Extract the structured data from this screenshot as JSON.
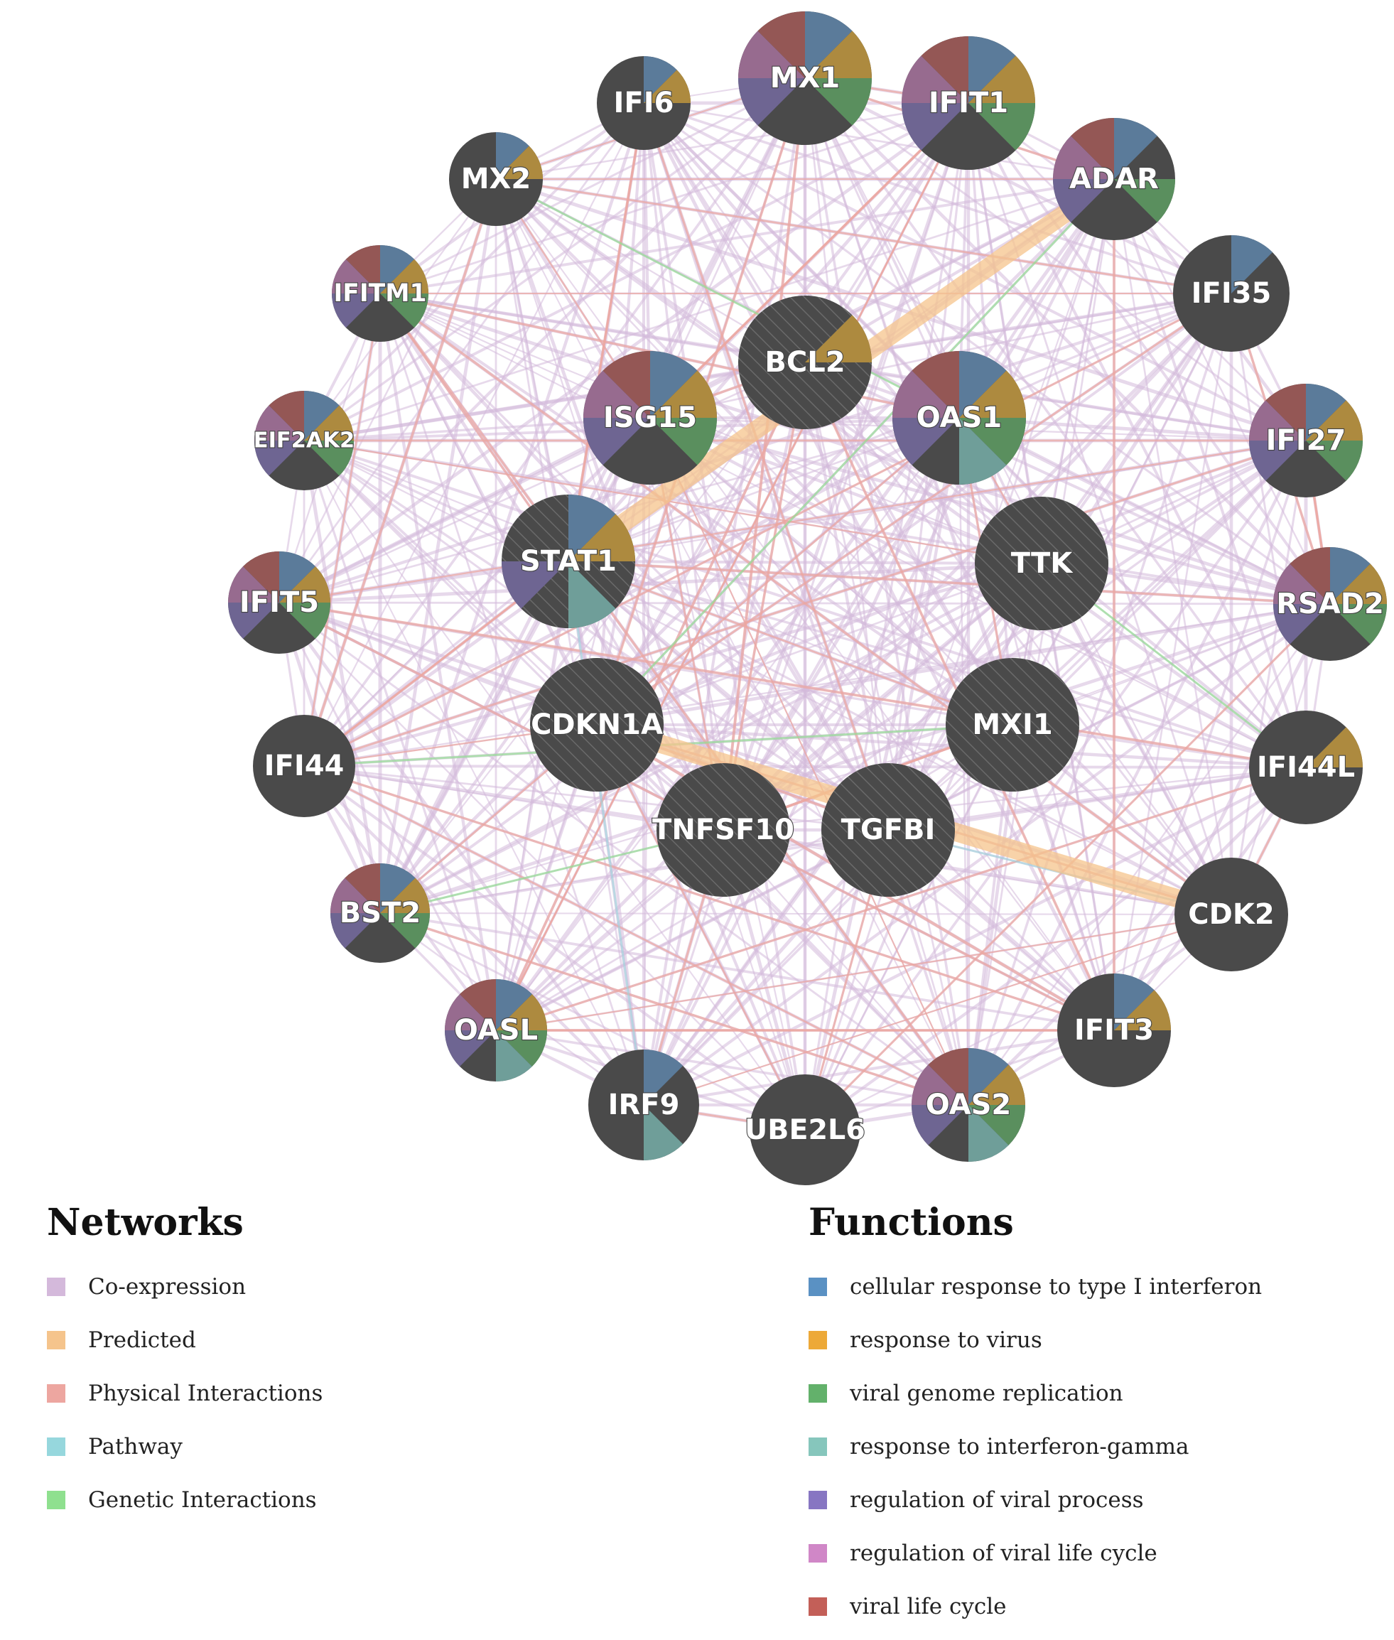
{
  "networks_legend": {
    "title": "Networks",
    "items": [
      {
        "label": "Co-expression",
        "color": "#d4b9db"
      },
      {
        "label": "Predicted",
        "color": "#f5c48c"
      },
      {
        "label": "Physical Interactions",
        "color": "#eda6a0"
      },
      {
        "label": "Pathway",
        "color": "#96d7dd"
      },
      {
        "label": "Genetic Interactions",
        "color": "#8fe08f"
      }
    ]
  },
  "functions_legend": {
    "title": "Functions",
    "items": [
      {
        "label": "cellular response to type I interferon",
        "color": "#5a91c3"
      },
      {
        "label": "response to virus",
        "color": "#eda938"
      },
      {
        "label": "viral genome replication",
        "color": "#63b16b"
      },
      {
        "label": "response to interferon-gamma",
        "color": "#86c6bc"
      },
      {
        "label": "regulation of viral process",
        "color": "#8776c2"
      },
      {
        "label": "regulation of viral life cycle",
        "color": "#d087c7"
      },
      {
        "label": "viral life cycle",
        "color": "#c35f58"
      }
    ]
  },
  "network": {
    "node_fill": "#4a4a4a",
    "genes": [
      {
        "name": "IFI6",
        "functions": [
          0,
          1
        ],
        "query": false
      },
      {
        "name": "MX1",
        "functions": [
          0,
          1,
          2,
          4,
          5,
          6
        ],
        "query": false
      },
      {
        "name": "IFIT1",
        "functions": [
          0,
          1,
          2,
          4,
          5,
          6
        ],
        "query": false
      },
      {
        "name": "MX2",
        "functions": [
          0,
          1
        ],
        "query": false
      },
      {
        "name": "ADAR",
        "functions": [
          0,
          2,
          4,
          5,
          6
        ],
        "query": false
      },
      {
        "name": "IFITM1",
        "functions": [
          0,
          1,
          2,
          4,
          5,
          6
        ],
        "query": false
      },
      {
        "name": "IFI35",
        "functions": [
          0
        ],
        "query": false
      },
      {
        "name": "BCL2",
        "functions": [
          1
        ],
        "query": true
      },
      {
        "name": "ISG15",
        "functions": [
          0,
          1,
          2,
          4,
          5,
          6
        ],
        "query": false
      },
      {
        "name": "OAS1",
        "functions": [
          0,
          1,
          2,
          3,
          4,
          5,
          6
        ],
        "query": false
      },
      {
        "name": "EIF2AK2",
        "functions": [
          0,
          1,
          2,
          4,
          5,
          6
        ],
        "query": false
      },
      {
        "name": "IFI27",
        "functions": [
          0,
          1,
          2,
          4,
          5,
          6
        ],
        "query": false
      },
      {
        "name": "STAT1",
        "functions": [
          0,
          1,
          3,
          4
        ],
        "query": true
      },
      {
        "name": "TTK",
        "functions": [],
        "query": true
      },
      {
        "name": "IFIT5",
        "functions": [
          0,
          1,
          2,
          4,
          5,
          6
        ],
        "query": false
      },
      {
        "name": "RSAD2",
        "functions": [
          0,
          1,
          2,
          4,
          5,
          6
        ],
        "query": false
      },
      {
        "name": "CDKN1A",
        "functions": [],
        "query": true
      },
      {
        "name": "MXI1",
        "functions": [],
        "query": true
      },
      {
        "name": "IFI44",
        "functions": [],
        "query": false
      },
      {
        "name": "IFI44L",
        "functions": [
          1
        ],
        "query": false
      },
      {
        "name": "TNFSF10",
        "functions": [],
        "query": true
      },
      {
        "name": "TGFBI",
        "functions": [],
        "query": true
      },
      {
        "name": "BST2",
        "functions": [
          0,
          1,
          2,
          4,
          5,
          6
        ],
        "query": false
      },
      {
        "name": "CDK2",
        "functions": [],
        "query": false
      },
      {
        "name": "OASL",
        "functions": [
          0,
          1,
          2,
          3,
          4,
          5,
          6
        ],
        "query": false
      },
      {
        "name": "IFIT3",
        "functions": [
          0,
          1
        ],
        "query": false
      },
      {
        "name": "IRF9",
        "functions": [
          0,
          3
        ],
        "query": false
      },
      {
        "name": "UBE2L6",
        "functions": [],
        "query": false
      },
      {
        "name": "OAS2",
        "functions": [
          0,
          1,
          2,
          3,
          4,
          5,
          6
        ],
        "query": false
      }
    ],
    "highlighted_links": [
      {
        "source": "ADAR",
        "target": "STAT1",
        "type": "Predicted"
      },
      {
        "source": "CDKN1A",
        "target": "CDK2",
        "type": "Predicted"
      }
    ]
  }
}
